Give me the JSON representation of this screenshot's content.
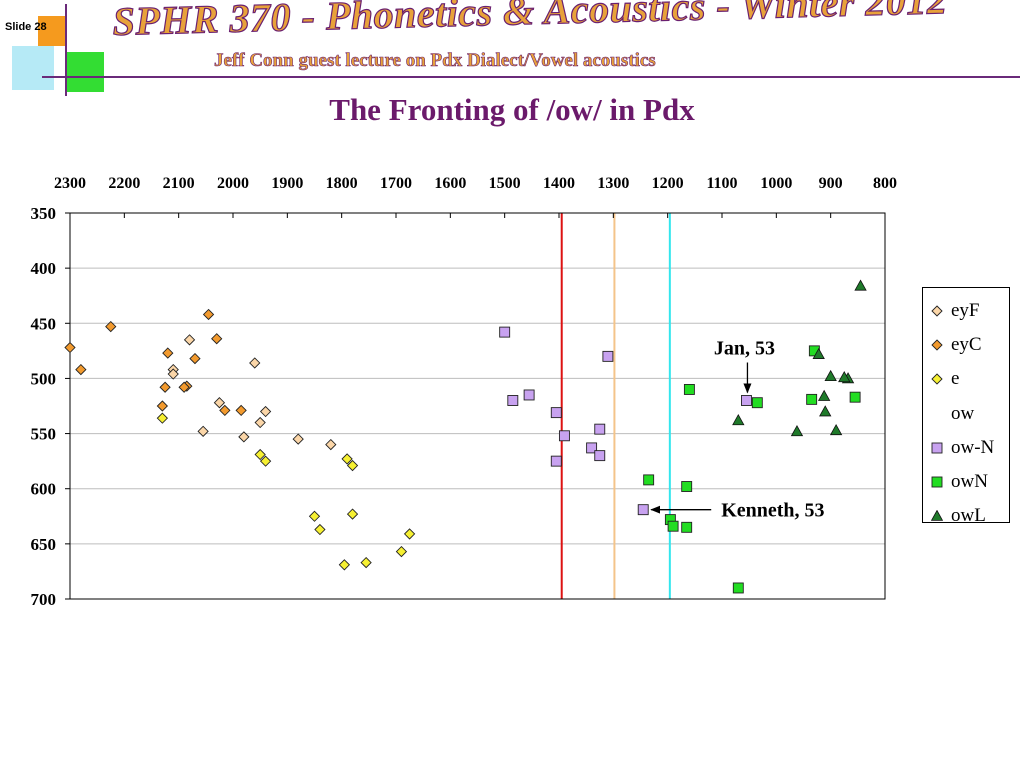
{
  "slide": {
    "number_label": "Slide 28",
    "course_title": "SPHR 370 - Phonetics & Acoustics - Winter 2012",
    "lecture_line": "Jeff Conn guest lecture on Pdx Dialect/Vowel acoustics",
    "title": "The Fronting of /ow/ in Pdx"
  },
  "colors": {
    "eyF": "#fbd6a8",
    "eyC": "#f29a2e",
    "e": "#f6f032",
    "ow-N": "#c8a2f0",
    "owN": "#22dd22",
    "owL": "#1f7a2a",
    "red_line": "#dd1111",
    "tan_line": "#f4c48a",
    "cyan_line": "#33e6ee"
  },
  "chart_data": {
    "type": "scatter",
    "title": "The Fronting of /ow/ in Pdx",
    "xlabel": "",
    "ylabel": "",
    "x_reversed": true,
    "y_reversed": true,
    "xlim": [
      2300,
      800
    ],
    "ylim": [
      350,
      700
    ],
    "x_ticks": [
      2300,
      2200,
      2100,
      2000,
      1900,
      1800,
      1700,
      1600,
      1500,
      1400,
      1300,
      1200,
      1100,
      1000,
      900,
      800
    ],
    "y_ticks": [
      350,
      400,
      450,
      500,
      550,
      600,
      650,
      700
    ],
    "grid": "horizontal",
    "legend_position": "right",
    "vertical_lines": [
      {
        "x": 1395,
        "color": "#dd1111"
      },
      {
        "x": 1298,
        "color": "#f4c48a"
      },
      {
        "x": 1196,
        "color": "#33e6ee"
      }
    ],
    "series": [
      {
        "name": "eyF",
        "marker": "diamond",
        "color": "#fbd6a8",
        "points": [
          [
            2110,
            492
          ],
          [
            2080,
            465
          ],
          [
            1960,
            486
          ],
          [
            2025,
            522
          ],
          [
            1940,
            530
          ],
          [
            1950,
            540
          ],
          [
            1980,
            553
          ],
          [
            2055,
            548
          ],
          [
            1880,
            555
          ],
          [
            1820,
            560
          ],
          [
            2110,
            496
          ]
        ]
      },
      {
        "name": "eyC",
        "marker": "diamond",
        "color": "#f29a2e",
        "points": [
          [
            2300,
            472
          ],
          [
            2280,
            492
          ],
          [
            2225,
            453
          ],
          [
            2045,
            442
          ],
          [
            2030,
            464
          ],
          [
            2120,
            477
          ],
          [
            2070,
            482
          ],
          [
            2125,
            508
          ],
          [
            2085,
            507
          ],
          [
            2090,
            508
          ],
          [
            2130,
            525
          ],
          [
            2015,
            529
          ],
          [
            1985,
            529
          ]
        ]
      },
      {
        "name": "e",
        "marker": "diamond",
        "color": "#f6f032",
        "points": [
          [
            2130,
            536
          ],
          [
            1950,
            569
          ],
          [
            1940,
            575
          ],
          [
            1790,
            573
          ],
          [
            1780,
            579
          ],
          [
            1850,
            625
          ],
          [
            1840,
            637
          ],
          [
            1780,
            623
          ],
          [
            1795,
            669
          ],
          [
            1755,
            667
          ],
          [
            1690,
            657
          ],
          [
            1675,
            641
          ]
        ]
      },
      {
        "name": "ow",
        "marker": "none",
        "color": "#000000",
        "points": []
      },
      {
        "name": "ow-N",
        "marker": "square",
        "color": "#c8a2f0",
        "points": [
          [
            1500,
            458
          ],
          [
            1485,
            520
          ],
          [
            1455,
            515
          ],
          [
            1310,
            480
          ],
          [
            1405,
            531
          ],
          [
            1390,
            552
          ],
          [
            1405,
            575
          ],
          [
            1340,
            563
          ],
          [
            1325,
            546
          ],
          [
            1325,
            570
          ],
          [
            1245,
            619
          ],
          [
            1055,
            520
          ]
        ]
      },
      {
        "name": "owN",
        "marker": "square",
        "color": "#22dd22",
        "points": [
          [
            1235,
            592
          ],
          [
            1195,
            628
          ],
          [
            1190,
            634
          ],
          [
            1165,
            635
          ],
          [
            1165,
            598
          ],
          [
            1160,
            510
          ],
          [
            1070,
            690
          ],
          [
            1035,
            522
          ],
          [
            935,
            519
          ],
          [
            930,
            475
          ],
          [
            855,
            517
          ]
        ]
      },
      {
        "name": "owL",
        "marker": "triangle",
        "color": "#1f7a2a",
        "points": [
          [
            845,
            416
          ],
          [
            922,
            478
          ],
          [
            900,
            498
          ],
          [
            912,
            516
          ],
          [
            868,
            500
          ],
          [
            875,
            499
          ],
          [
            910,
            530
          ],
          [
            890,
            547
          ],
          [
            962,
            548
          ],
          [
            1070,
            538
          ]
        ]
      }
    ],
    "annotations": [
      {
        "text": "Jan, 53",
        "arrow_to": [
          1055,
          520
        ]
      },
      {
        "text": "Kenneth, 53",
        "arrow_to": [
          1245,
          619
        ]
      }
    ]
  }
}
